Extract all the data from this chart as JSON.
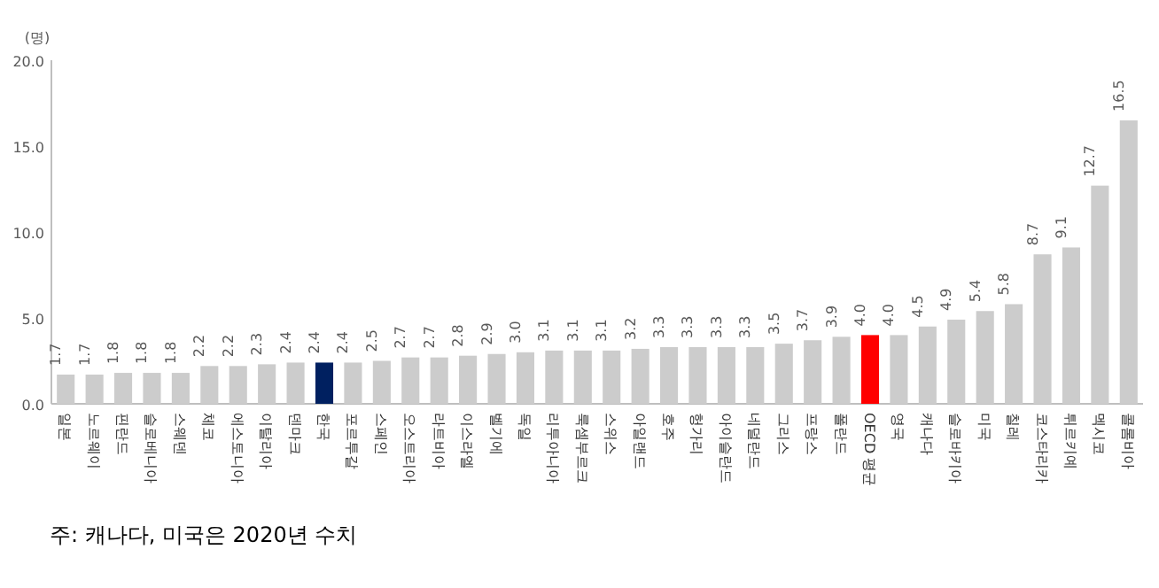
{
  "chart_data": {
    "type": "bar",
    "ylabel": "(명)",
    "categories": [
      "일본",
      "노르웨이",
      "핀란드",
      "슬로베니아",
      "스웨덴",
      "체코",
      "에스토니아",
      "이탈리아",
      "덴마크",
      "한국",
      "포르투갈",
      "스페인",
      "오스트리아",
      "라트비아",
      "이스라엘",
      "벨기에",
      "독일",
      "리투아니아",
      "룩셈부르크",
      "스위스",
      "아일랜드",
      "호주",
      "헝가리",
      "아이슬란드",
      "네덜란드",
      "그리스",
      "프랑스",
      "폴란드",
      "OECD 평균",
      "영국",
      "캐나다",
      "슬로바키아",
      "미국",
      "칠레",
      "코스타리카",
      "튀르키예",
      "멕시코",
      "콜롬비아"
    ],
    "values": [
      1.7,
      1.7,
      1.8,
      1.8,
      1.8,
      2.2,
      2.2,
      2.3,
      2.4,
      2.4,
      2.4,
      2.5,
      2.7,
      2.7,
      2.8,
      2.9,
      3.0,
      3.1,
      3.1,
      3.1,
      3.2,
      3.3,
      3.3,
      3.3,
      3.3,
      3.5,
      3.7,
      3.9,
      4.0,
      4.0,
      4.5,
      4.9,
      5.4,
      5.8,
      8.7,
      9.1,
      12.7,
      16.5
    ],
    "value_labels": [
      "1.7",
      "1.7",
      "1.8",
      "1.8",
      "1.8",
      "2.2",
      "2.2",
      "2.3",
      "2.4",
      "2.4",
      "2.4",
      "2.5",
      "2.7",
      "2.7",
      "2.8",
      "2.9",
      "3.0",
      "3.1",
      "3.1",
      "3.1",
      "3.2",
      "3.3",
      "3.3",
      "3.3",
      "3.3",
      "3.5",
      "3.7",
      "3.9",
      "4.0",
      "4.0",
      "4.5",
      "4.9",
      "5.4",
      "5.8",
      "8.7",
      "9.1",
      "12.7",
      "16.5"
    ],
    "colors": [
      "#cccccc",
      "#cccccc",
      "#cccccc",
      "#cccccc",
      "#cccccc",
      "#cccccc",
      "#cccccc",
      "#cccccc",
      "#cccccc",
      "#002060",
      "#cccccc",
      "#cccccc",
      "#cccccc",
      "#cccccc",
      "#cccccc",
      "#cccccc",
      "#cccccc",
      "#cccccc",
      "#cccccc",
      "#cccccc",
      "#cccccc",
      "#cccccc",
      "#cccccc",
      "#cccccc",
      "#cccccc",
      "#cccccc",
      "#cccccc",
      "#cccccc",
      "#ff0000",
      "#cccccc",
      "#cccccc",
      "#cccccc",
      "#cccccc",
      "#cccccc",
      "#cccccc",
      "#cccccc",
      "#cccccc",
      "#cccccc"
    ],
    "ylim": [
      0,
      20
    ],
    "yticks": [
      {
        "value": 0,
        "label": "0.0"
      },
      {
        "value": 5,
        "label": "5.0"
      },
      {
        "value": 10,
        "label": "10.0"
      },
      {
        "value": 15,
        "label": "15.0"
      },
      {
        "value": 20,
        "label": "20.0"
      }
    ],
    "annotations": [
      "주: 캐나다, 미국은 2020년 수치"
    ]
  }
}
